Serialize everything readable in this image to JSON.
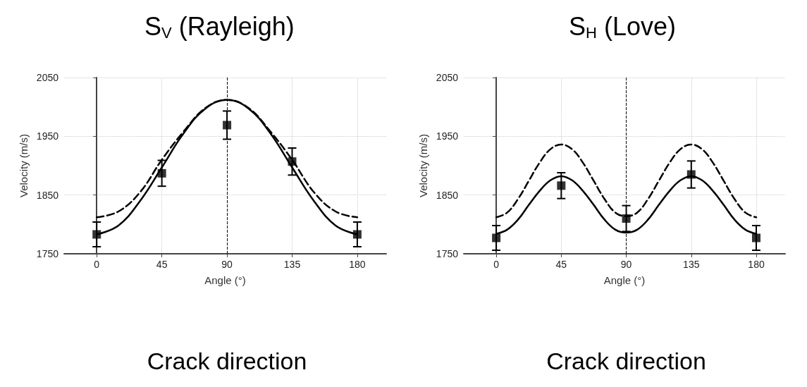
{
  "chart_data": [
    {
      "type": "scatter",
      "title": "S$_{V}$ (Rayleigh)",
      "xlabel": "Angle (°)",
      "ylabel": "Velocity (m/s)",
      "xlim": [
        -22.5,
        200
      ],
      "xticks": [
        0,
        45,
        90,
        135,
        180
      ],
      "ylim": [
        1750,
        2050
      ],
      "yticks": [
        1750,
        1850,
        1950,
        2050
      ],
      "grid": true,
      "ref_lines": [
        {
          "axis": "x",
          "value": 90,
          "label": "Crack direction",
          "color": "#000000",
          "line_style": "dashed"
        }
      ],
      "series": [
        {
          "marker": "square",
          "color": "#000000",
          "x": [
            0,
            45,
            90,
            135,
            180
          ],
          "values": [
            1783,
            1887,
            1969,
            1907,
            1783
          ],
          "errors": [
            21,
            22,
            24,
            23,
            21
          ]
        },
        {
          "type": "line",
          "color": "#000000",
          "line_style": "solid",
          "x": [
            0,
            15,
            30,
            45,
            60,
            75,
            90,
            105,
            120,
            135,
            150,
            165,
            180
          ],
          "values": [
            1783,
            1798,
            1840,
            1897,
            1955,
            1997,
            2012,
            1997,
            1955,
            1897,
            1840,
            1798,
            1783
          ]
        },
        {
          "type": "line",
          "color": "#000000",
          "line_style": "dashed",
          "x": [
            0,
            15,
            30,
            45,
            60,
            75,
            90,
            105,
            120,
            135,
            150,
            165,
            180
          ],
          "values": [
            1812,
            1822,
            1855,
            1910,
            1958,
            1998,
            2012,
            1998,
            1958,
            1910,
            1855,
            1822,
            1812
          ]
        }
      ]
    },
    {
      "type": "scatter",
      "title": "S$_{H}$ (Love)",
      "xlabel": "Angle (°)",
      "ylabel": "Velocity (m/s)",
      "xlim": [
        -22.5,
        200
      ],
      "xticks": [
        0,
        45,
        90,
        135,
        180
      ],
      "ylim": [
        1750,
        2050
      ],
      "yticks": [
        1750,
        1850,
        1950,
        2050
      ],
      "grid": true,
      "ref_lines": [
        {
          "axis": "x",
          "value": 90,
          "label": "Crack direction",
          "color": "#000000",
          "line_style": "dashed"
        }
      ],
      "series": [
        {
          "marker": "square",
          "color": "#000000",
          "x": [
            0,
            45,
            90,
            135,
            180
          ],
          "values": [
            1777,
            1866,
            1810,
            1885,
            1777
          ],
          "errors": [
            21,
            22,
            22,
            23,
            21
          ]
        },
        {
          "type": "line",
          "color": "#000000",
          "line_style": "solid",
          "x": [
            0,
            7.5,
            15,
            22.5,
            30,
            37.5,
            45,
            52.5,
            60,
            67.5,
            75,
            82.5,
            90,
            97.5,
            105,
            112.5,
            120,
            127.5,
            135,
            142.5,
            150,
            157.5,
            165,
            172.5,
            180
          ],
          "values": [
            1784,
            1791,
            1808,
            1833,
            1857,
            1875,
            1882,
            1875,
            1857,
            1833,
            1808,
            1791,
            1786,
            1791,
            1808,
            1833,
            1857,
            1875,
            1882,
            1875,
            1857,
            1833,
            1808,
            1791,
            1784
          ]
        },
        {
          "type": "line",
          "color": "#000000",
          "line_style": "dashed",
          "x": [
            0,
            7.5,
            15,
            22.5,
            30,
            37.5,
            45,
            52.5,
            60,
            67.5,
            75,
            82.5,
            90,
            97.5,
            105,
            112.5,
            120,
            127.5,
            135,
            142.5,
            150,
            157.5,
            165,
            172.5,
            180
          ],
          "values": [
            1812,
            1820,
            1843,
            1874,
            1905,
            1928,
            1936,
            1928,
            1905,
            1874,
            1843,
            1820,
            1814,
            1820,
            1843,
            1874,
            1905,
            1928,
            1936,
            1928,
            1905,
            1874,
            1843,
            1820,
            1812
          ]
        }
      ]
    }
  ]
}
